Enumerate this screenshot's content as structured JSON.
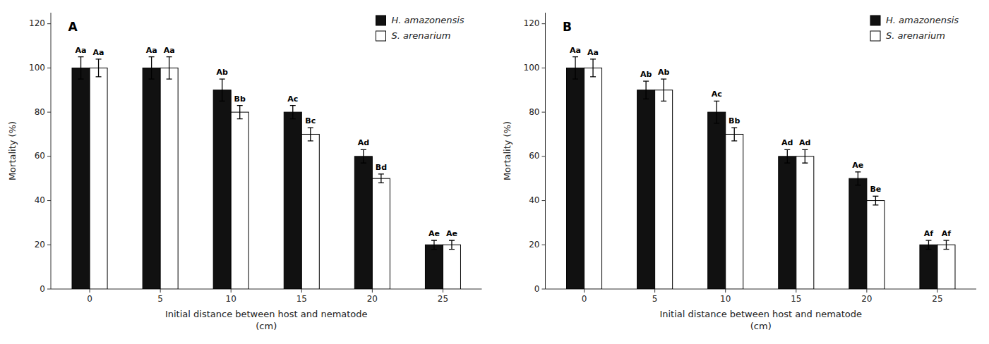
{
  "chart_data": [
    {
      "type": "bar",
      "title": "A",
      "xlabel": "Initial distance between host and nematode\n(cm)",
      "ylabel": "Mortality (%)",
      "categories": [
        "0",
        "5",
        "10",
        "15",
        "20",
        "25"
      ],
      "series": [
        {
          "name": "H. amazonensis",
          "color": "#111111",
          "values": [
            100,
            100,
            90,
            80,
            60,
            20
          ],
          "errors": [
            5,
            5,
            5,
            3,
            3,
            2
          ],
          "annotations": [
            "Aa",
            "Aa",
            "Ab",
            "Ac",
            "Ad",
            "Ae"
          ]
        },
        {
          "name": "S. arenarium",
          "color": "#ffffff",
          "values": [
            100,
            100,
            80,
            70,
            50,
            20
          ],
          "errors": [
            4,
            5,
            3,
            3,
            2,
            2
          ],
          "annotations": [
            "Aa",
            "Aa",
            "Bb",
            "Bc",
            "Bd",
            "Ae"
          ]
        }
      ],
      "ylim": [
        0,
        125
      ],
      "yticks": [
        0,
        20,
        40,
        60,
        80,
        100,
        120
      ],
      "grid": false,
      "legend": "upper right"
    },
    {
      "type": "bar",
      "title": "B",
      "xlabel": "Initial distance between host and nematode\n(cm)",
      "ylabel": "Mortality (%)",
      "categories": [
        "0",
        "5",
        "10",
        "15",
        "20",
        "25"
      ],
      "series": [
        {
          "name": "H. amazonensis",
          "color": "#111111",
          "values": [
            100,
            90,
            80,
            60,
            50,
            20
          ],
          "errors": [
            5,
            4,
            5,
            3,
            3,
            2
          ],
          "annotations": [
            "Aa",
            "Ab",
            "Ac",
            "Ad",
            "Ae",
            "Af"
          ]
        },
        {
          "name": "S. arenarium",
          "color": "#ffffff",
          "values": [
            100,
            90,
            70,
            60,
            40,
            20
          ],
          "errors": [
            4,
            5,
            3,
            3,
            2,
            2
          ],
          "annotations": [
            "Aa",
            "Ab",
            "Bb",
            "Ad",
            "Be",
            "Af"
          ]
        }
      ],
      "ylim": [
        0,
        125
      ],
      "yticks": [
        0,
        20,
        40,
        60,
        80,
        100,
        120
      ],
      "grid": false,
      "legend": "upper right"
    }
  ]
}
